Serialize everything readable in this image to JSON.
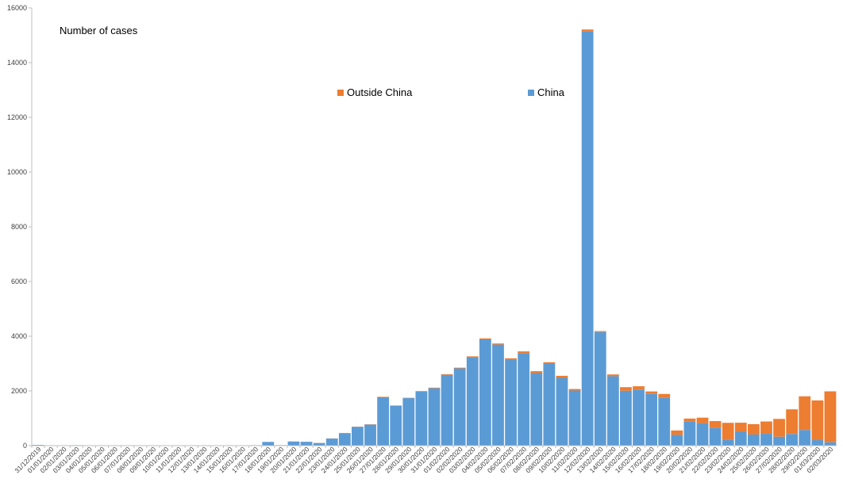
{
  "chart_data": {
    "type": "bar",
    "stacked": true,
    "annotation": "Number of cases",
    "xlabel": "",
    "ylabel": "",
    "ylim": [
      0,
      16000
    ],
    "y_ticks": [
      0,
      2000,
      4000,
      6000,
      8000,
      10000,
      12000,
      14000,
      16000
    ],
    "grid": false,
    "legend": {
      "items": [
        {
          "name": "Outside China",
          "color": "#ED7D31"
        },
        {
          "name": "China",
          "color": "#5B9BD5"
        }
      ]
    },
    "categories": [
      "31/12/2019",
      "01/01/2020",
      "02/01/2020",
      "03/01/2020",
      "04/01/2020",
      "05/01/2020",
      "06/01/2020",
      "07/01/2020",
      "08/01/2020",
      "09/01/2020",
      "10/01/2020",
      "11/01/2020",
      "12/01/2020",
      "13/01/2020",
      "14/01/2020",
      "15/01/2020",
      "16/01/2020",
      "17/01/2020",
      "18/01/2020",
      "19/01/2020",
      "20/01/2020",
      "21/01/2020",
      "22/01/2020",
      "23/01/2020",
      "24/01/2020",
      "25/01/2020",
      "26/01/2020",
      "27/01/2020",
      "28/01/2020",
      "29/01/2020",
      "30/01/2020",
      "31/01/2020",
      "01/02/2020",
      "02/02/2020",
      "03/02/2020",
      "04/02/2020",
      "05/02/2020",
      "06/02/2020",
      "07/02/2020",
      "08/02/2020",
      "09/02/2020",
      "10/02/2020",
      "11/02/2020",
      "12/02/2020",
      "13/02/2020",
      "14/02/2020",
      "15/02/2020",
      "16/02/2020",
      "17/02/2020",
      "18/02/2020",
      "19/02/2020",
      "20/02/2020",
      "21/02/2020",
      "22/02/2020",
      "23/02/2020",
      "24/02/2020",
      "25/02/2020",
      "26/02/2020",
      "27/02/2020",
      "28/02/2020",
      "29/02/2020",
      "01/03/2020",
      "02/03/2020"
    ],
    "series": [
      {
        "name": "China",
        "color": "#5B9BD5",
        "values": [
          27,
          0,
          0,
          17,
          0,
          15,
          0,
          0,
          0,
          0,
          0,
          0,
          0,
          0,
          0,
          0,
          4,
          17,
          136,
          19,
          151,
          140,
          97,
          259,
          457,
          688,
          769,
          1771,
          1459,
          1737,
          1981,
          2099,
          2589,
          2825,
          3235,
          3884,
          3694,
          3143,
          3385,
          2652,
          3000,
          2478,
          2015,
          15152,
          4156,
          2538,
          2007,
          2051,
          1891,
          1749,
          394,
          889,
          823,
          648,
          214,
          508,
          406,
          433,
          327,
          427,
          573,
          202,
          125
        ]
      },
      {
        "name": "Outside China",
        "color": "#ED7D31",
        "values": [
          0,
          0,
          0,
          0,
          0,
          0,
          0,
          0,
          0,
          0,
          0,
          0,
          0,
          1,
          1,
          0,
          1,
          0,
          0,
          1,
          1,
          2,
          3,
          4,
          7,
          8,
          10,
          15,
          10,
          12,
          15,
          20,
          24,
          25,
          30,
          36,
          40,
          50,
          60,
          70,
          48,
          75,
          55,
          60,
          30,
          65,
          130,
          120,
          90,
          140,
          160,
          100,
          200,
          250,
          620,
          330,
          380,
          450,
          650,
          900,
          1230,
          1450,
          1860
        ]
      }
    ]
  }
}
